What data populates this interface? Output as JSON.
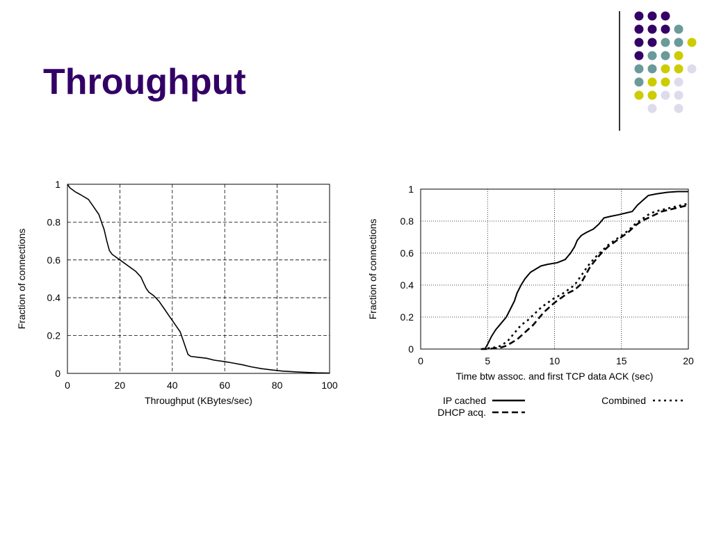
{
  "slide": {
    "title": "Throughput",
    "accent_colors": {
      "title": "#330066",
      "dark_purple": "#330066",
      "teal": "#6a9a9a",
      "yellow": "#cccc00",
      "lavender": "#dcdcec"
    },
    "decoration_icon": "dot-grid-decoration"
  },
  "chart_data": [
    {
      "type": "line",
      "title": "",
      "xlabel": "Throughput (KBytes/sec)",
      "ylabel": "Fraction of connections",
      "xlim": [
        0,
        100
      ],
      "ylim": [
        0,
        1
      ],
      "x_ticks": [
        "0",
        "20",
        "40",
        "60",
        "80",
        "100"
      ],
      "y_ticks": [
        "0",
        "0.2",
        "0.4",
        "0.6",
        "0.8",
        "1"
      ],
      "grid": true,
      "series": [
        {
          "style": "solid",
          "points": [
            [
              0,
              1.0
            ],
            [
              1,
              0.98
            ],
            [
              3,
              0.96
            ],
            [
              5,
              0.945
            ],
            [
              8,
              0.92
            ],
            [
              10,
              0.88
            ],
            [
              12,
              0.84
            ],
            [
              13,
              0.8
            ],
            [
              14,
              0.76
            ],
            [
              15,
              0.7
            ],
            [
              16,
              0.65
            ],
            [
              17,
              0.63
            ],
            [
              18,
              0.62
            ],
            [
              20,
              0.6
            ],
            [
              22,
              0.58
            ],
            [
              24,
              0.56
            ],
            [
              26,
              0.54
            ],
            [
              28,
              0.51
            ],
            [
              29,
              0.48
            ],
            [
              30,
              0.45
            ],
            [
              31,
              0.43
            ],
            [
              33,
              0.41
            ],
            [
              35,
              0.38
            ],
            [
              37,
              0.34
            ],
            [
              39,
              0.3
            ],
            [
              41,
              0.26
            ],
            [
              43,
              0.22
            ],
            [
              44,
              0.18
            ],
            [
              45,
              0.14
            ],
            [
              46,
              0.1
            ],
            [
              47,
              0.09
            ],
            [
              50,
              0.085
            ],
            [
              53,
              0.08
            ],
            [
              56,
              0.07
            ],
            [
              60,
              0.062
            ],
            [
              63,
              0.055
            ],
            [
              67,
              0.045
            ],
            [
              70,
              0.035
            ],
            [
              74,
              0.025
            ],
            [
              78,
              0.018
            ],
            [
              82,
              0.012
            ],
            [
              88,
              0.007
            ],
            [
              95,
              0.003
            ],
            [
              100,
              0.002
            ]
          ]
        }
      ]
    },
    {
      "type": "line",
      "title": "",
      "xlabel": "Time btw assoc. and first TCP data ACK (sec)",
      "ylabel": "Fraction of connections",
      "xlim": [
        0,
        20
      ],
      "ylim": [
        0,
        1
      ],
      "x_ticks": [
        "0",
        "5",
        "10",
        "15",
        "20"
      ],
      "y_ticks": [
        "0",
        "0.2",
        "0.4",
        "0.6",
        "0.8",
        "1"
      ],
      "grid": true,
      "legend_position": "bottom",
      "series": [
        {
          "name": "IP cached",
          "style": "solid",
          "points": [
            [
              4.8,
              0.0
            ],
            [
              5.0,
              0.03
            ],
            [
              5.3,
              0.08
            ],
            [
              5.6,
              0.12
            ],
            [
              6.0,
              0.16
            ],
            [
              6.4,
              0.2
            ],
            [
              6.7,
              0.25
            ],
            [
              7.0,
              0.3
            ],
            [
              7.2,
              0.35
            ],
            [
              7.5,
              0.4
            ],
            [
              7.8,
              0.44
            ],
            [
              8.2,
              0.48
            ],
            [
              8.6,
              0.5
            ],
            [
              9.0,
              0.52
            ],
            [
              9.5,
              0.53
            ],
            [
              10.2,
              0.54
            ],
            [
              10.8,
              0.56
            ],
            [
              11.2,
              0.6
            ],
            [
              11.5,
              0.64
            ],
            [
              11.7,
              0.68
            ],
            [
              12.0,
              0.71
            ],
            [
              12.4,
              0.73
            ],
            [
              12.9,
              0.75
            ],
            [
              13.3,
              0.78
            ],
            [
              13.7,
              0.82
            ],
            [
              14.2,
              0.83
            ],
            [
              14.8,
              0.84
            ],
            [
              15.3,
              0.85
            ],
            [
              15.8,
              0.86
            ],
            [
              16.2,
              0.9
            ],
            [
              16.6,
              0.93
            ],
            [
              17.0,
              0.96
            ],
            [
              17.6,
              0.97
            ],
            [
              18.4,
              0.98
            ],
            [
              19.2,
              0.985
            ],
            [
              20,
              0.985
            ]
          ]
        },
        {
          "name": "DHCP acq.",
          "style": "dashed",
          "points": [
            [
              4.5,
              0.0
            ],
            [
              5.0,
              0.0
            ],
            [
              5.5,
              0.005
            ],
            [
              6.0,
              0.01
            ],
            [
              6.4,
              0.02
            ],
            [
              6.8,
              0.04
            ],
            [
              7.2,
              0.06
            ],
            [
              7.6,
              0.09
            ],
            [
              8.0,
              0.12
            ],
            [
              8.4,
              0.15
            ],
            [
              8.8,
              0.19
            ],
            [
              9.2,
              0.23
            ],
            [
              9.6,
              0.26
            ],
            [
              10.0,
              0.29
            ],
            [
              10.5,
              0.32
            ],
            [
              11.0,
              0.35
            ],
            [
              11.5,
              0.37
            ],
            [
              11.9,
              0.4
            ],
            [
              12.3,
              0.46
            ],
            [
              12.7,
              0.52
            ],
            [
              13.1,
              0.56
            ],
            [
              13.5,
              0.6
            ],
            [
              14.0,
              0.64
            ],
            [
              14.5,
              0.67
            ],
            [
              15.0,
              0.7
            ],
            [
              15.5,
              0.73
            ],
            [
              16.0,
              0.77
            ],
            [
              16.5,
              0.8
            ],
            [
              17.0,
              0.82
            ],
            [
              17.5,
              0.84
            ],
            [
              18.0,
              0.86
            ],
            [
              18.5,
              0.87
            ],
            [
              19.0,
              0.88
            ],
            [
              19.5,
              0.89
            ],
            [
              20,
              0.9
            ]
          ]
        },
        {
          "name": "Combined",
          "style": "dotted",
          "points": [
            [
              4.6,
              0.0
            ],
            [
              5.0,
              0.005
            ],
            [
              5.5,
              0.01
            ],
            [
              6.0,
              0.02
            ],
            [
              6.5,
              0.05
            ],
            [
              7.0,
              0.1
            ],
            [
              7.5,
              0.15
            ],
            [
              8.0,
              0.18
            ],
            [
              8.5,
              0.22
            ],
            [
              9.0,
              0.26
            ],
            [
              9.5,
              0.29
            ],
            [
              10.0,
              0.32
            ],
            [
              10.5,
              0.34
            ],
            [
              11.0,
              0.37
            ],
            [
              11.5,
              0.4
            ],
            [
              12.0,
              0.46
            ],
            [
              12.5,
              0.52
            ],
            [
              13.0,
              0.57
            ],
            [
              13.5,
              0.61
            ],
            [
              14.0,
              0.65
            ],
            [
              14.5,
              0.68
            ],
            [
              15.0,
              0.71
            ],
            [
              15.5,
              0.74
            ],
            [
              16.0,
              0.78
            ],
            [
              16.5,
              0.81
            ],
            [
              17.0,
              0.84
            ],
            [
              17.5,
              0.86
            ],
            [
              18.0,
              0.87
            ],
            [
              18.5,
              0.88
            ],
            [
              19.0,
              0.89
            ],
            [
              19.5,
              0.9
            ],
            [
              20,
              0.91
            ]
          ]
        }
      ]
    }
  ]
}
